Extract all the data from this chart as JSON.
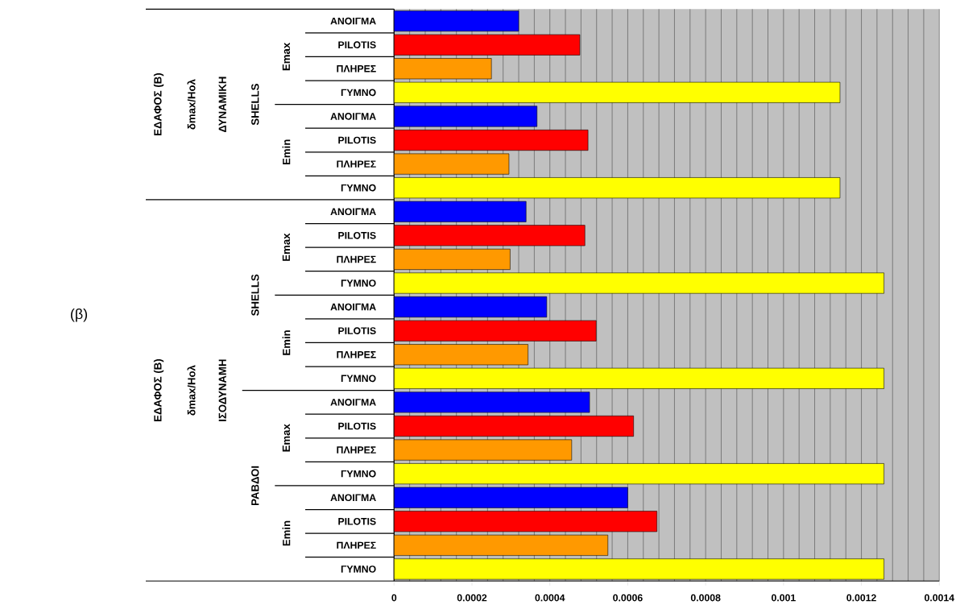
{
  "chart_data": {
    "type": "bar",
    "orientation": "horizontal",
    "categories": [
      "ΑΝΟΙΓΜΑ",
      "PILOTIS",
      "ΠΛΗΡΕΣ",
      "ΓΥΜΝΟ",
      "ΑΝΟΙΓΜΑ",
      "PILOTIS",
      "ΠΛΗΡΕΣ",
      "ΓΥΜΝΟ",
      "ΑΝΟΙΓΜΑ",
      "PILOTIS",
      "ΠΛΗΡΕΣ",
      "ΓΥΜΝΟ",
      "ΑΝΟΙΓΜΑ",
      "PILOTIS",
      "ΠΛΗΡΕΣ",
      "ΓΥΜΝΟ",
      "ΑΝΟΙΓΜΑ",
      "PILOTIS",
      "ΠΛΗΡΕΣ",
      "ΓΥΜΝΟ",
      "ΑΝΟΙΓΜΑ",
      "PILOTIS",
      "ΠΛΗΡΕΣ",
      "ΓΥΜΝΟ"
    ],
    "values": [
      0.00032,
      0.000477,
      0.00025,
      0.001145,
      0.000367,
      0.000498,
      0.000295,
      0.001145,
      0.000339,
      0.00049,
      0.000298,
      0.001258,
      0.000392,
      0.000519,
      0.000344,
      0.001258,
      0.000502,
      0.000615,
      0.000456,
      0.001258,
      0.0006,
      0.000675,
      0.000549,
      0.001258
    ],
    "colors": [
      "#0000ff",
      "#ff0000",
      "#ff9900",
      "#ffff00",
      "#0000ff",
      "#ff0000",
      "#ff9900",
      "#ffff00",
      "#0000ff",
      "#ff0000",
      "#ff9900",
      "#ffff00",
      "#0000ff",
      "#ff0000",
      "#ff9900",
      "#ffff00",
      "#0000ff",
      "#ff0000",
      "#ff9900",
      "#ffff00",
      "#0000ff",
      "#ff0000",
      "#ff9900",
      "#ffff00"
    ],
    "xlim": [
      0,
      0.0014
    ],
    "xticks": [
      0,
      0.0002,
      0.0004,
      0.0006,
      0.0008,
      0.001,
      0.0012,
      0.0014
    ],
    "grid": "x",
    "annotations": [
      "(β)",
      "ΕΔΑΦΟΣ (Β)",
      "δmax/Ηολ",
      "ΔΥΝΑΜΙΚΗ",
      "SHELLS",
      "Emax",
      "Emin",
      "ΕΔΑΦΟΣ (Β)",
      "δmax/Ηολ",
      "ΙΣΟΔΥΝΑΜΗ",
      "SHELLS",
      "Emax",
      "Emin",
      "ΡΑΒΔΟΙ",
      "Emax",
      "Emin"
    ]
  }
}
